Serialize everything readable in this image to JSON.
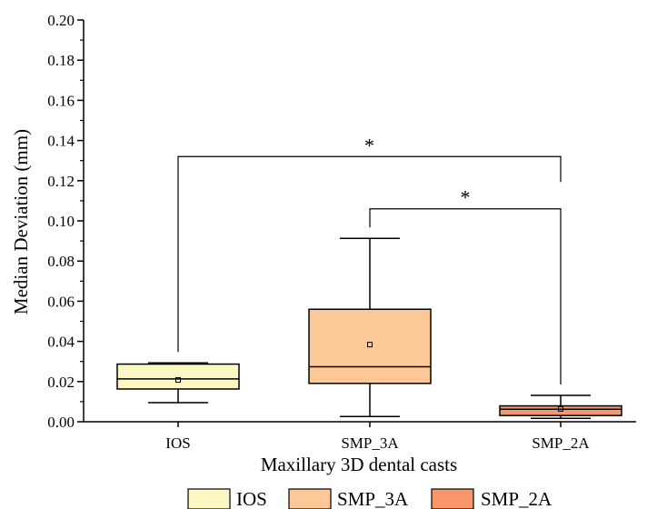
{
  "chart_data": {
    "type": "box",
    "title": "",
    "xlabel": "Maxillary 3D dental casts",
    "ylabel": "Median Deviation (mm)",
    "ylim": [
      0,
      0.2
    ],
    "yticks": [
      "0.00",
      "0.02",
      "0.04",
      "0.06",
      "0.08",
      "0.10",
      "0.12",
      "0.14",
      "0.16",
      "0.18",
      "0.20"
    ],
    "yminor_ticks": true,
    "grid": false,
    "legend_position": "bottom",
    "categories": [
      "IOS",
      "SMP_3A",
      "SMP_2A"
    ],
    "series": [
      {
        "name": "IOS",
        "min": 0.0095,
        "q1": 0.0163,
        "median": 0.0213,
        "q3": 0.0287,
        "max": 0.0293,
        "mean": 0.0208,
        "color": "#FCF8C4"
      },
      {
        "name": "SMP_3A",
        "min": 0.0026,
        "q1": 0.0191,
        "median": 0.0274,
        "q3": 0.056,
        "max": 0.0913,
        "mean": 0.0384,
        "color": "#FDC898"
      },
      {
        "name": "SMP_2A",
        "min": 0.0017,
        "q1": 0.0031,
        "median": 0.0062,
        "q3": 0.0079,
        "max": 0.0131,
        "mean": 0.0064,
        "color": "#F9966A"
      }
    ],
    "significance": [
      {
        "from": "IOS",
        "to": "SMP_2A",
        "y": 0.132,
        "label": "*"
      },
      {
        "from": "SMP_3A",
        "to": "SMP_2A",
        "y": 0.106,
        "label": "*"
      }
    ]
  }
}
